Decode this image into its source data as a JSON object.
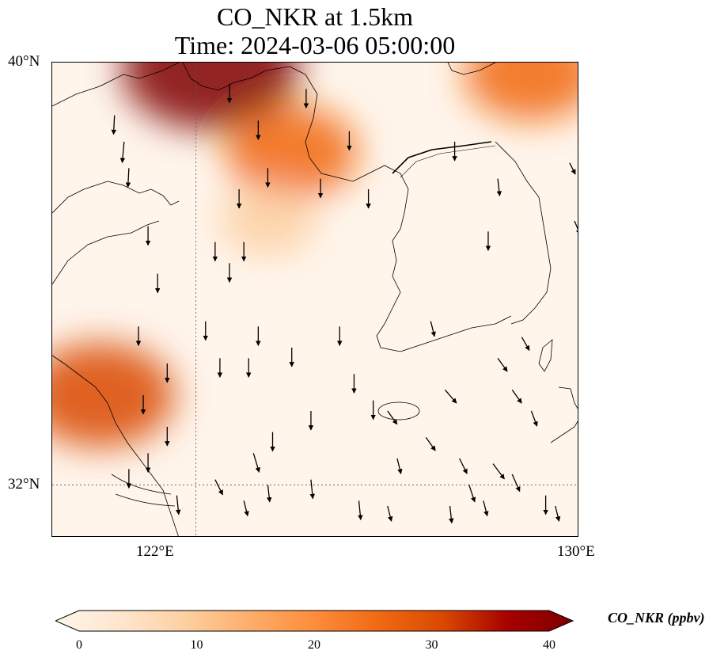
{
  "title_line1": "CO_NKR at 1.5km",
  "title_line2": "Time: 2024-03-06 05:00:00",
  "map": {
    "lon_range": [
      119,
      130
    ],
    "lat_range": [
      31,
      40
    ],
    "gridlines": {
      "lon": [
        122
      ],
      "lat": [
        32
      ]
    },
    "lat_labels": [
      "40°N",
      "32°N"
    ],
    "lon_labels": [
      "122°E",
      "130°E"
    ],
    "plumes": [
      {
        "lon": 122.3,
        "lat": 39.9,
        "value": 40
      },
      {
        "lon": 124.0,
        "lat": 38.3,
        "value": 24
      },
      {
        "lon": 129.0,
        "lat": 39.8,
        "value": 25
      },
      {
        "lon": 120.0,
        "lat": 33.7,
        "value": 30
      },
      {
        "lon": 123.5,
        "lat": 37.0,
        "value": 12
      }
    ],
    "wind_arrows": [
      [
        120.3,
        39.0,
        -0.05,
        -1.0
      ],
      [
        120.5,
        38.5,
        -0.1,
        -1.1
      ],
      [
        120.6,
        38.0,
        -0.05,
        -1.0
      ],
      [
        121.0,
        36.9,
        0.0,
        -1.0
      ],
      [
        121.2,
        36.0,
        0.0,
        -1.0
      ],
      [
        120.8,
        35.0,
        0.0,
        -1.0
      ],
      [
        121.4,
        34.3,
        0.0,
        -1.0
      ],
      [
        120.9,
        33.7,
        0.0,
        -1.0
      ],
      [
        121.4,
        33.1,
        0.0,
        -1.0
      ],
      [
        121.0,
        32.6,
        0.0,
        -1.0
      ],
      [
        120.6,
        32.3,
        0.0,
        -1.0
      ],
      [
        121.6,
        31.8,
        0.1,
        -1.0
      ],
      [
        122.4,
        36.6,
        0.0,
        -1.0
      ],
      [
        122.7,
        36.2,
        0.0,
        -1.0
      ],
      [
        123.0,
        36.6,
        0.0,
        -1.0
      ],
      [
        122.2,
        35.1,
        0.0,
        -1.0
      ],
      [
        122.5,
        34.4,
        0.0,
        -1.0
      ],
      [
        123.3,
        35.0,
        0.0,
        -1.0
      ],
      [
        123.1,
        34.4,
        0.0,
        -1.0
      ],
      [
        124.0,
        34.6,
        0.0,
        -1.0
      ],
      [
        124.4,
        33.4,
        0.0,
        -1.0
      ],
      [
        123.6,
        33.0,
        0.0,
        -1.0
      ],
      [
        124.4,
        32.1,
        0.1,
        -1.0
      ],
      [
        123.2,
        32.6,
        0.3,
        -1.0
      ],
      [
        122.4,
        32.1,
        0.4,
        -0.8
      ],
      [
        123.5,
        32.0,
        0.1,
        -0.9
      ],
      [
        123.0,
        31.7,
        0.2,
        -0.8
      ],
      [
        125.0,
        35.0,
        0.0,
        -1.0
      ],
      [
        125.3,
        34.1,
        0.0,
        -1.0
      ],
      [
        125.7,
        33.6,
        0.0,
        -1.0
      ],
      [
        126.2,
        32.5,
        0.2,
        -0.8
      ],
      [
        125.4,
        31.7,
        0.1,
        -1.0
      ],
      [
        126.0,
        31.6,
        0.2,
        -0.8
      ],
      [
        126.0,
        33.4,
        0.5,
        -0.7
      ],
      [
        127.2,
        33.8,
        0.6,
        -0.7
      ],
      [
        126.8,
        32.9,
        0.5,
        -0.7
      ],
      [
        127.5,
        32.5,
        0.4,
        -0.8
      ],
      [
        128.2,
        32.4,
        0.6,
        -0.8
      ],
      [
        128.6,
        32.2,
        0.4,
        -0.9
      ],
      [
        127.7,
        32.0,
        0.3,
        -0.9
      ],
      [
        128.0,
        31.7,
        0.2,
        -0.8
      ],
      [
        127.3,
        31.6,
        0.1,
        -0.9
      ],
      [
        128.3,
        34.4,
        0.5,
        -0.7
      ],
      [
        128.8,
        34.8,
        0.4,
        -0.7
      ],
      [
        128.6,
        33.8,
        0.5,
        -0.7
      ],
      [
        129.0,
        33.4,
        0.3,
        -0.8
      ],
      [
        129.3,
        31.8,
        0.0,
        -1.0
      ],
      [
        129.5,
        31.6,
        0.2,
        -0.8
      ],
      [
        128.1,
        36.8,
        0.0,
        -1.0
      ],
      [
        127.4,
        38.5,
        0.0,
        -1.0
      ],
      [
        129.8,
        38.1,
        0.3,
        -0.6
      ],
      [
        129.9,
        37.0,
        0.3,
        -0.7
      ],
      [
        128.3,
        37.8,
        0.1,
        -0.9
      ],
      [
        126.9,
        35.1,
        0.2,
        -0.8
      ],
      [
        125.6,
        37.6,
        0.0,
        -1.0
      ],
      [
        124.3,
        39.5,
        0.0,
        -1.0
      ],
      [
        125.2,
        38.7,
        0.0,
        -1.0
      ],
      [
        124.6,
        37.8,
        0.0,
        -1.0
      ],
      [
        123.3,
        38.9,
        0.0,
        -1.0
      ],
      [
        122.7,
        39.6,
        0.0,
        -1.0
      ],
      [
        122.9,
        37.6,
        0.0,
        -1.0
      ],
      [
        123.5,
        38.0,
        0.0,
        -1.0
      ]
    ]
  },
  "colorbar": {
    "label": "CO_NKR (ppbv)",
    "min": 0,
    "max": 40,
    "ticks": [
      {
        "value": 0,
        "label": "0"
      },
      {
        "value": 10,
        "label": "10"
      },
      {
        "value": 20,
        "label": "20"
      },
      {
        "value": 30,
        "label": "30"
      },
      {
        "value": 40,
        "label": "40"
      }
    ],
    "colormap_stops": [
      "#fff5eb",
      "#fee6ce",
      "#fdd0a2",
      "#fdae6b",
      "#fd8d3c",
      "#f16913",
      "#d94801",
      "#a60000",
      "#7f0000"
    ]
  }
}
